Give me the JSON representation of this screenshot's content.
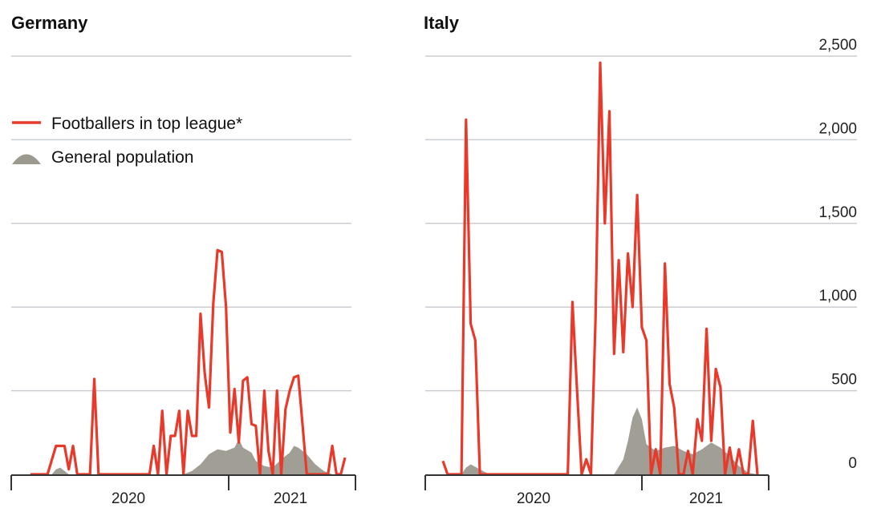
{
  "legend": {
    "footballers_label": "Footballers in top league*",
    "population_label": "General population"
  },
  "colors": {
    "footballers": "#e8392b",
    "population": "#9c9a8f",
    "grid": "#c9cdd1",
    "axis": "#333333"
  },
  "chart_data": [
    {
      "type": "area",
      "title": "Germany",
      "xlabel": "",
      "ylabel": "",
      "x_ticks": [
        "2020",
        "2021"
      ],
      "ylim": [
        0,
        2500
      ],
      "grid": true,
      "legend_position": "top-left",
      "series": [
        {
          "name": "Footballers in top league*",
          "kind": "line",
          "points": [
            [
              0,
              0
            ],
            [
              4,
              0
            ],
            [
              6,
              170
            ],
            [
              8,
              170
            ],
            [
              9,
              30
            ],
            [
              10,
              170
            ],
            [
              11,
              0
            ],
            [
              14,
              0
            ],
            [
              15,
              570
            ],
            [
              16,
              0
            ],
            [
              28,
              0
            ],
            [
              29,
              170
            ],
            [
              30,
              0
            ],
            [
              31,
              380
            ],
            [
              32,
              0
            ],
            [
              33,
              230
            ],
            [
              34,
              230
            ],
            [
              35,
              380
            ],
            [
              36,
              0
            ],
            [
              37,
              380
            ],
            [
              38,
              230
            ],
            [
              39,
              230
            ],
            [
              40,
              960
            ],
            [
              41,
              600
            ],
            [
              42,
              400
            ],
            [
              43,
              1020
            ],
            [
              44,
              1340
            ],
            [
              45,
              1330
            ],
            [
              46,
              1000
            ],
            [
              47,
              250
            ],
            [
              48,
              510
            ],
            [
              49,
              190
            ],
            [
              50,
              560
            ],
            [
              51,
              580
            ],
            [
              52,
              300
            ],
            [
              53,
              290
            ],
            [
              54,
              0
            ],
            [
              55,
              500
            ],
            [
              56,
              140
            ],
            [
              57,
              0
            ],
            [
              58,
              500
            ],
            [
              59,
              0
            ],
            [
              60,
              390
            ],
            [
              61,
              500
            ],
            [
              62,
              580
            ],
            [
              63,
              590
            ],
            [
              64,
              300
            ],
            [
              65,
              0
            ],
            [
              70,
              0
            ],
            [
              71,
              170
            ],
            [
              72,
              0
            ],
            [
              73,
              0
            ],
            [
              74,
              100
            ]
          ]
        },
        {
          "name": "General population",
          "kind": "area",
          "points": [
            [
              0,
              0
            ],
            [
              5,
              0
            ],
            [
              6,
              30
            ],
            [
              7,
              40
            ],
            [
              8,
              20
            ],
            [
              9,
              0
            ],
            [
              36,
              0
            ],
            [
              38,
              20
            ],
            [
              40,
              60
            ],
            [
              42,
              120
            ],
            [
              44,
              150
            ],
            [
              46,
              140
            ],
            [
              48,
              160
            ],
            [
              49,
              210
            ],
            [
              50,
              160
            ],
            [
              52,
              130
            ],
            [
              53,
              80
            ],
            [
              55,
              50
            ],
            [
              57,
              40
            ],
            [
              59,
              90
            ],
            [
              61,
              130
            ],
            [
              62,
              170
            ],
            [
              63,
              160
            ],
            [
              65,
              120
            ],
            [
              67,
              60
            ],
            [
              69,
              20
            ],
            [
              71,
              0
            ],
            [
              74,
              0
            ]
          ]
        }
      ]
    },
    {
      "type": "area",
      "title": "Italy",
      "xlabel": "",
      "ylabel": "",
      "x_ticks": [
        "2020",
        "2021"
      ],
      "y_ticks": [
        "0",
        "500",
        "1,000",
        "1,500",
        "2,000",
        "2,500"
      ],
      "ylim": [
        0,
        2500
      ],
      "grid": true,
      "series": [
        {
          "name": "Footballers in top league*",
          "kind": "line",
          "points": [
            [
              0,
              80
            ],
            [
              1,
              0
            ],
            [
              4,
              0
            ],
            [
              5,
              2120
            ],
            [
              6,
              900
            ],
            [
              7,
              800
            ],
            [
              8,
              0
            ],
            [
              27,
              0
            ],
            [
              28,
              1030
            ],
            [
              29,
              500
            ],
            [
              30,
              0
            ],
            [
              31,
              90
            ],
            [
              32,
              0
            ],
            [
              33,
              930
            ],
            [
              34,
              2460
            ],
            [
              35,
              1500
            ],
            [
              36,
              2170
            ],
            [
              37,
              720
            ],
            [
              38,
              1280
            ],
            [
              39,
              730
            ],
            [
              40,
              1320
            ],
            [
              41,
              1000
            ],
            [
              42,
              1670
            ],
            [
              43,
              880
            ],
            [
              44,
              800
            ],
            [
              45,
              0
            ],
            [
              46,
              150
            ],
            [
              47,
              0
            ],
            [
              48,
              1260
            ],
            [
              49,
              540
            ],
            [
              50,
              400
            ],
            [
              51,
              0
            ],
            [
              52,
              0
            ],
            [
              53,
              140
            ],
            [
              54,
              0
            ],
            [
              55,
              330
            ],
            [
              56,
              200
            ],
            [
              57,
              870
            ],
            [
              58,
              200
            ],
            [
              59,
              630
            ],
            [
              60,
              520
            ],
            [
              61,
              0
            ],
            [
              62,
              160
            ],
            [
              63,
              0
            ],
            [
              64,
              150
            ],
            [
              65,
              0
            ],
            [
              66,
              0
            ],
            [
              67,
              320
            ],
            [
              68,
              0
            ]
          ]
        },
        {
          "name": "General population",
          "kind": "area",
          "points": [
            [
              0,
              0
            ],
            [
              4,
              0
            ],
            [
              5,
              40
            ],
            [
              6,
              60
            ],
            [
              8,
              30
            ],
            [
              10,
              0
            ],
            [
              37,
              0
            ],
            [
              39,
              90
            ],
            [
              40,
              200
            ],
            [
              41,
              340
            ],
            [
              42,
              400
            ],
            [
              43,
              330
            ],
            [
              44,
              180
            ],
            [
              46,
              140
            ],
            [
              48,
              160
            ],
            [
              50,
              170
            ],
            [
              52,
              140
            ],
            [
              54,
              120
            ],
            [
              56,
              150
            ],
            [
              58,
              190
            ],
            [
              60,
              160
            ],
            [
              62,
              110
            ],
            [
              64,
              50
            ],
            [
              66,
              10
            ],
            [
              68,
              0
            ]
          ]
        }
      ]
    }
  ]
}
